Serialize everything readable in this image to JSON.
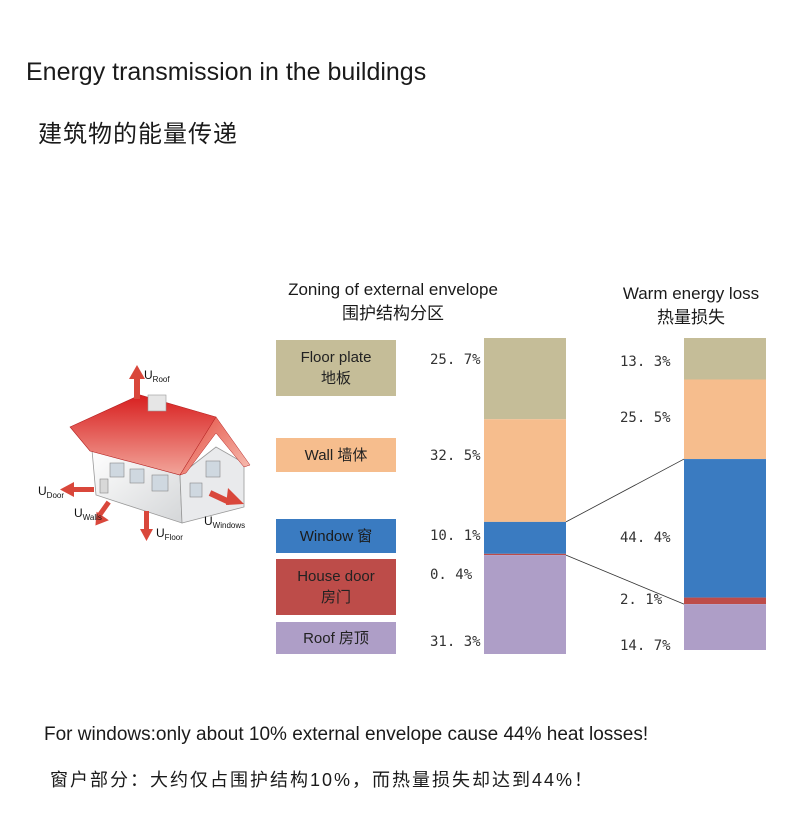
{
  "title_en": "Energy transmission in the buildings",
  "title_zh": "建筑物的能量传递",
  "house_labels": {
    "roof": {
      "main": "U",
      "sub": "Roof"
    },
    "door": {
      "main": "U",
      "sub": "Door"
    },
    "walls": {
      "main": "U",
      "sub": "Walls"
    },
    "floor": {
      "main": "U",
      "sub": "Floor"
    },
    "windows": {
      "main": "U",
      "sub": "Windows"
    }
  },
  "chart_data": [
    {
      "type": "bar",
      "stacked": true,
      "title": "Zoning of external envelope",
      "subtitle": "围护结构分区",
      "categories": [
        "Floor plate 地板",
        "Wall 墙体",
        "Window 窗",
        "House door 房门",
        "Roof 房顶"
      ],
      "values": [
        25.7,
        32.5,
        10.1,
        0.4,
        31.3
      ],
      "labels": [
        "25. 7%",
        "32. 5%",
        "10. 1%",
        "0. 4%",
        "31. 3%"
      ],
      "unit": "%"
    },
    {
      "type": "bar",
      "stacked": true,
      "title": "Warm energy loss",
      "subtitle": "热量损失",
      "categories": [
        "Floor plate 地板",
        "Wall 墙体",
        "Window 窗",
        "House door 房门",
        "Roof 房顶"
      ],
      "values": [
        13.3,
        25.5,
        44.4,
        2.1,
        14.7
      ],
      "labels": [
        "13. 3%",
        "25. 5%",
        "44. 4%",
        "2. 1%",
        "14. 7%"
      ],
      "unit": "%"
    }
  ],
  "legend": [
    {
      "line1": "Floor plate",
      "line2": "地板",
      "color": "#c5bd98"
    },
    {
      "line1": "Wall 墙体",
      "line2": "",
      "color": "#f6bd8d"
    },
    {
      "line1": "Window 窗",
      "line2": "",
      "color": "#3a7bc1"
    },
    {
      "line1": "House door",
      "line2": "房门",
      "color": "#bd4c49"
    },
    {
      "line1": "Roof 房顶",
      "line2": "",
      "color": "#ae9ec7"
    }
  ],
  "footer_en": "For windows:only about 10% external envelope cause 44% heat losses!",
  "footer_zh": "窗户部分：大约仅占围护结构10%，而热量损失却达到44%！"
}
